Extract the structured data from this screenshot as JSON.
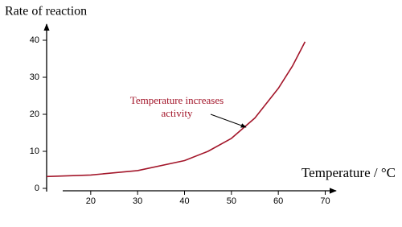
{
  "chart_data": {
    "type": "line",
    "y_label": "Rate of reaction",
    "x_label": "Temperature / °C",
    "annotation": [
      "Temperature increases",
      "activity"
    ],
    "x": [
      10.6,
      20,
      30,
      40,
      45,
      50,
      55,
      60,
      63,
      65.7
    ],
    "series": [
      {
        "color": "#a3162a",
        "values": [
          3.2,
          3.6,
          4.8,
          7.5,
          10,
          13.5,
          19,
          27,
          33,
          39.6
        ]
      }
    ],
    "xlim": [
      10.6,
      73
    ],
    "xticks": [
      20,
      30,
      40,
      50,
      60,
      70
    ],
    "ylim": [
      0,
      44
    ],
    "yticks": [
      0,
      10,
      20,
      30,
      40
    ]
  }
}
